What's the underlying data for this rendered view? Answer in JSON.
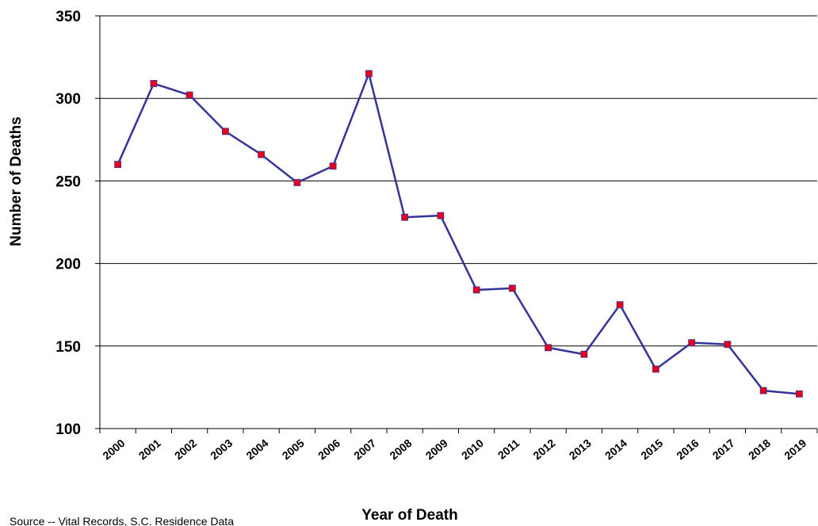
{
  "chart_data": {
    "type": "line",
    "title": "",
    "xlabel": "Year of Death",
    "ylabel": "Number of Deaths",
    "ylim": [
      100,
      350
    ],
    "yticks": [
      100,
      150,
      200,
      250,
      300,
      350
    ],
    "grid": true,
    "categories": [
      "2000",
      "2001",
      "2002",
      "2003",
      "2004",
      "2005",
      "2006",
      "2007",
      "2008",
      "2009",
      "2010",
      "2011",
      "2012",
      "2013",
      "2014",
      "2015",
      "2016",
      "2017",
      "2018",
      "2019"
    ],
    "series": [
      {
        "values": [
          260,
          309,
          302,
          280,
          266,
          249,
          259,
          315,
          228,
          229,
          184,
          185,
          149,
          145,
          175,
          136,
          152,
          151,
          123,
          121
        ],
        "line_color": "#333399",
        "marker_color": "#e8001a",
        "marker": "square"
      }
    ],
    "source_note": "Source -- Vital Records, S.C. Residence Data"
  }
}
